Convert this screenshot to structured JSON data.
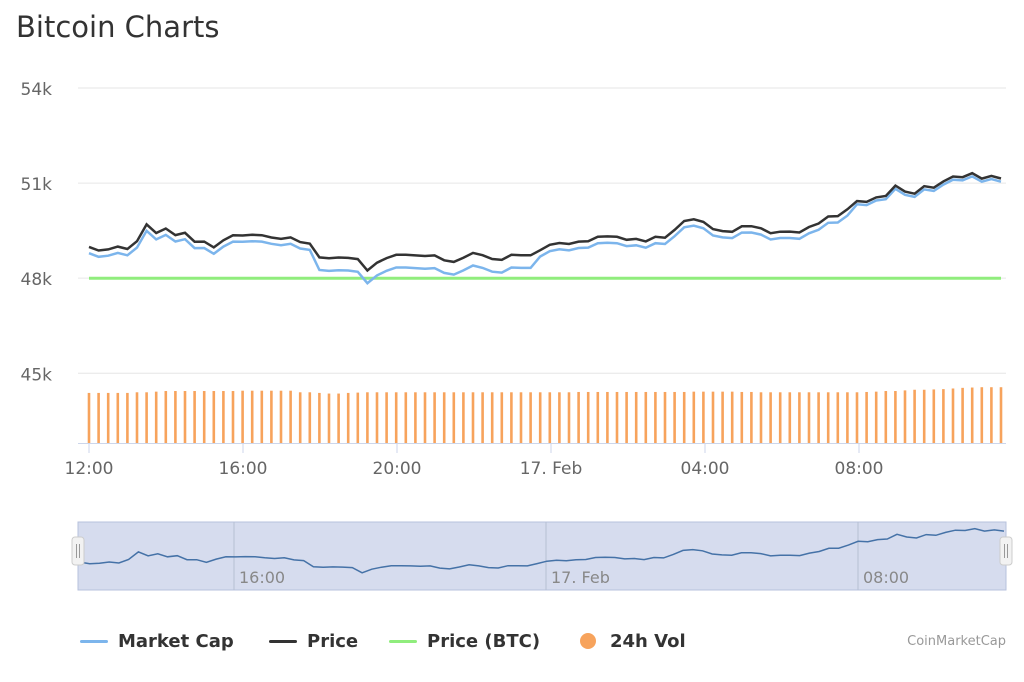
{
  "colors": {
    "market_cap": "#7cb5ec",
    "price": "#333333",
    "price_btc": "#90ed7d",
    "vol": "#f7a35c",
    "navigator_fill": "#d6dcee",
    "navigator_line": "#4572a7"
  },
  "legend": {
    "market_cap": "Market Cap",
    "price": "Price",
    "price_btc": "Price (BTC)",
    "vol": "24h Vol"
  },
  "credits": "CoinMarketCap",
  "chart_data": {
    "type": "line",
    "title": "Bitcoin Charts",
    "y_axis": {
      "ticks": [
        "45k",
        "48k",
        "51k",
        "54k"
      ],
      "ylim": [
        42800,
        54000
      ]
    },
    "x_axis": {
      "ticks": [
        "12:00",
        "16:00",
        "20:00",
        "17. Feb",
        "04:00",
        "08:00"
      ]
    },
    "navigator_ticks": [
      "16:00",
      "17. Feb",
      "08:00"
    ],
    "grid": true,
    "legend_position": "bottom",
    "series": [
      {
        "name": "Price",
        "values": [
          48988,
          48873,
          48908,
          48996,
          48921,
          49166,
          49696,
          49425,
          49566,
          49358,
          49431,
          49150,
          49153,
          48970,
          49196,
          49354,
          49348,
          49367,
          49355,
          49284,
          49239,
          49286,
          49137,
          49092,
          48657,
          48631,
          48651,
          48641,
          48602,
          48241,
          48489,
          48634,
          48738,
          48736,
          48719,
          48700,
          48718,
          48565,
          48513,
          48644,
          48799,
          48724,
          48605,
          48576,
          48736,
          48725,
          48723,
          48884,
          49052,
          49110,
          49077,
          49153,
          49165,
          49305,
          49319,
          49305,
          49212,
          49238,
          49160,
          49305,
          49278,
          49524,
          49804,
          49857,
          49775,
          49547,
          49485,
          49463,
          49637,
          49641,
          49575,
          49419,
          49467,
          49469,
          49442,
          49616,
          49725,
          49947,
          49957,
          50173,
          50432,
          50407,
          50550,
          50593,
          50920,
          50731,
          50665,
          50901,
          50855,
          51053,
          51207,
          51187,
          51311,
          51143,
          51226,
          51145
        ]
      },
      {
        "name": "Market Cap",
        "values": [
          48788,
          48673,
          48708,
          48796,
          48721,
          48966,
          49496,
          49225,
          49366,
          49158,
          49231,
          48950,
          48953,
          48770,
          48996,
          49154,
          49148,
          49167,
          49155,
          49084,
          49039,
          49086,
          48937,
          48892,
          48257,
          48231,
          48251,
          48241,
          48202,
          47841,
          48089,
          48234,
          48338,
          48336,
          48319,
          48300,
          48318,
          48165,
          48113,
          48244,
          48399,
          48324,
          48205,
          48176,
          48336,
          48325,
          48323,
          48684,
          48852,
          48910,
          48877,
          48953,
          48965,
          49105,
          49119,
          49105,
          49012,
          49038,
          48960,
          49105,
          49078,
          49324,
          49604,
          49657,
          49575,
          49347,
          49285,
          49263,
          49437,
          49441,
          49375,
          49219,
          49267,
          49269,
          49242,
          49416,
          49525,
          49747,
          49757,
          49973,
          50332,
          50307,
          50450,
          50493,
          50820,
          50631,
          50565,
          50801,
          50755,
          50953,
          51107,
          51087,
          51211,
          51043,
          51126,
          51045
        ]
      },
      {
        "name": "Price (BTC)",
        "values": [
          48000,
          48000,
          48000,
          48000,
          48000,
          48000,
          48000,
          48000,
          48000,
          48000,
          48000,
          48000,
          48000,
          48000,
          48000,
          48000,
          48000,
          48000,
          48000,
          48000,
          48000,
          48000,
          48000,
          48000,
          48000,
          48000,
          48000,
          48000,
          48000,
          48000,
          48000,
          48000,
          48000,
          48000,
          48000,
          48000,
          48000,
          48000,
          48000,
          48000,
          48000,
          48000,
          48000,
          48000,
          48000,
          48000,
          48000,
          48000,
          48000,
          48000,
          48000,
          48000,
          48000,
          48000,
          48000,
          48000,
          48000,
          48000,
          48000,
          48000,
          48000,
          48000,
          48000,
          48000,
          48000,
          48000,
          48000,
          48000,
          48000,
          48000,
          48000,
          48000,
          48000,
          48000,
          48000,
          48000,
          48000,
          48000,
          48000,
          48000,
          48000,
          48000,
          48000,
          48000,
          48000,
          48000,
          48000,
          48000,
          48000,
          48000,
          48000,
          48000,
          48000,
          48000,
          48000,
          48000
        ]
      },
      {
        "name": "24h Vol",
        "type": "bar",
        "values": [
          44380,
          44380,
          44380,
          44380,
          44380,
          44400,
          44400,
          44420,
          44440,
          44440,
          44440,
          44440,
          44440,
          44440,
          44440,
          44440,
          44450,
          44450,
          44450,
          44450,
          44450,
          44450,
          44400,
          44400,
          44380,
          44360,
          44360,
          44380,
          44390,
          44400,
          44400,
          44400,
          44400,
          44400,
          44400,
          44400,
          44400,
          44400,
          44400,
          44400,
          44400,
          44400,
          44400,
          44400,
          44400,
          44400,
          44400,
          44400,
          44400,
          44400,
          44400,
          44410,
          44410,
          44410,
          44410,
          44410,
          44410,
          44410,
          44410,
          44410,
          44410,
          44410,
          44410,
          44420,
          44420,
          44420,
          44420,
          44420,
          44410,
          44410,
          44400,
          44400,
          44400,
          44400,
          44400,
          44400,
          44400,
          44400,
          44400,
          44400,
          44400,
          44410,
          44420,
          44440,
          44440,
          44460,
          44480,
          44480,
          44490,
          44500,
          44520,
          44540,
          44550,
          44560,
          44560,
          44560
        ]
      }
    ]
  }
}
